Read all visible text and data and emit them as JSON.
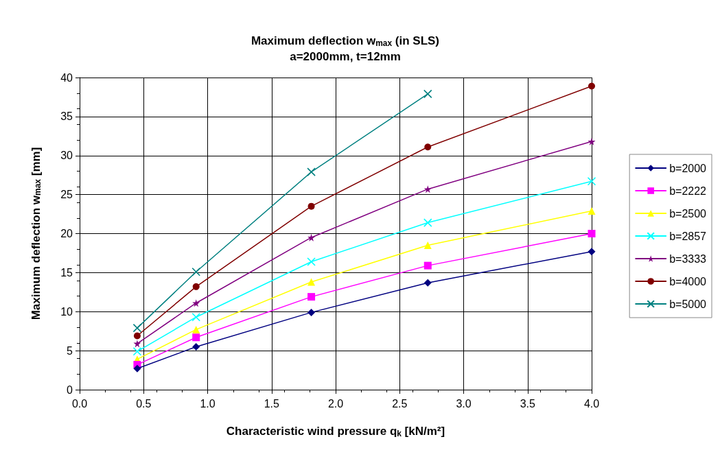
{
  "chart_data": {
    "type": "line",
    "title": "Maximum deflection w$_{max}$ (in SLS)",
    "subtitle": "a=2000mm, t=12mm",
    "xlabel": "Characteristic wind pressure q$_{k}$ [kN/m²]",
    "ylabel": "Maximum deflection w$_{max}$ [mm]",
    "x": [
      0.45,
      0.91,
      1.81,
      2.72,
      4.0
    ],
    "series": [
      {
        "name": "b=2000",
        "color": "#000080",
        "marker": "diamond",
        "values": [
          2.7,
          5.5,
          9.9,
          13.7,
          17.7
        ]
      },
      {
        "name": "b=2222",
        "color": "#ff00ff",
        "marker": "square",
        "values": [
          3.2,
          6.7,
          11.9,
          15.9,
          20.0
        ]
      },
      {
        "name": "b=2500",
        "color": "#ffff00",
        "marker": "triangle",
        "values": [
          3.9,
          7.7,
          13.8,
          18.5,
          22.9
        ]
      },
      {
        "name": "b=2857",
        "color": "#00ffff",
        "marker": "cross",
        "values": [
          4.9,
          9.3,
          16.4,
          21.4,
          26.7
        ]
      },
      {
        "name": "b=3333",
        "color": "#800080",
        "marker": "star",
        "values": [
          5.9,
          11.1,
          19.5,
          25.7,
          31.8
        ]
      },
      {
        "name": "b=4000",
        "color": "#800000",
        "marker": "circle",
        "values": [
          6.9,
          13.2,
          23.5,
          31.1,
          38.9
        ]
      },
      {
        "name": "b=5000",
        "color": "#008080",
        "marker": "cross",
        "values": [
          7.9,
          15.1,
          27.9,
          37.9,
          null
        ]
      }
    ],
    "xlim": [
      0,
      4
    ],
    "xticks": [
      {
        "value": 0,
        "label": "0.0"
      },
      0.5,
      {
        "value": 1,
        "label": "1.0"
      },
      1.5,
      {
        "value": 2,
        "label": "2.0"
      },
      2.5,
      {
        "value": 3,
        "label": "3.0"
      },
      3.5,
      {
        "value": 4,
        "label": "4.0"
      }
    ],
    "ylim": [
      0,
      40
    ],
    "yticks": [
      0,
      5,
      10,
      15,
      20,
      25,
      30,
      35,
      40
    ],
    "grid": true,
    "legend": "right",
    "line_style": "solid"
  }
}
